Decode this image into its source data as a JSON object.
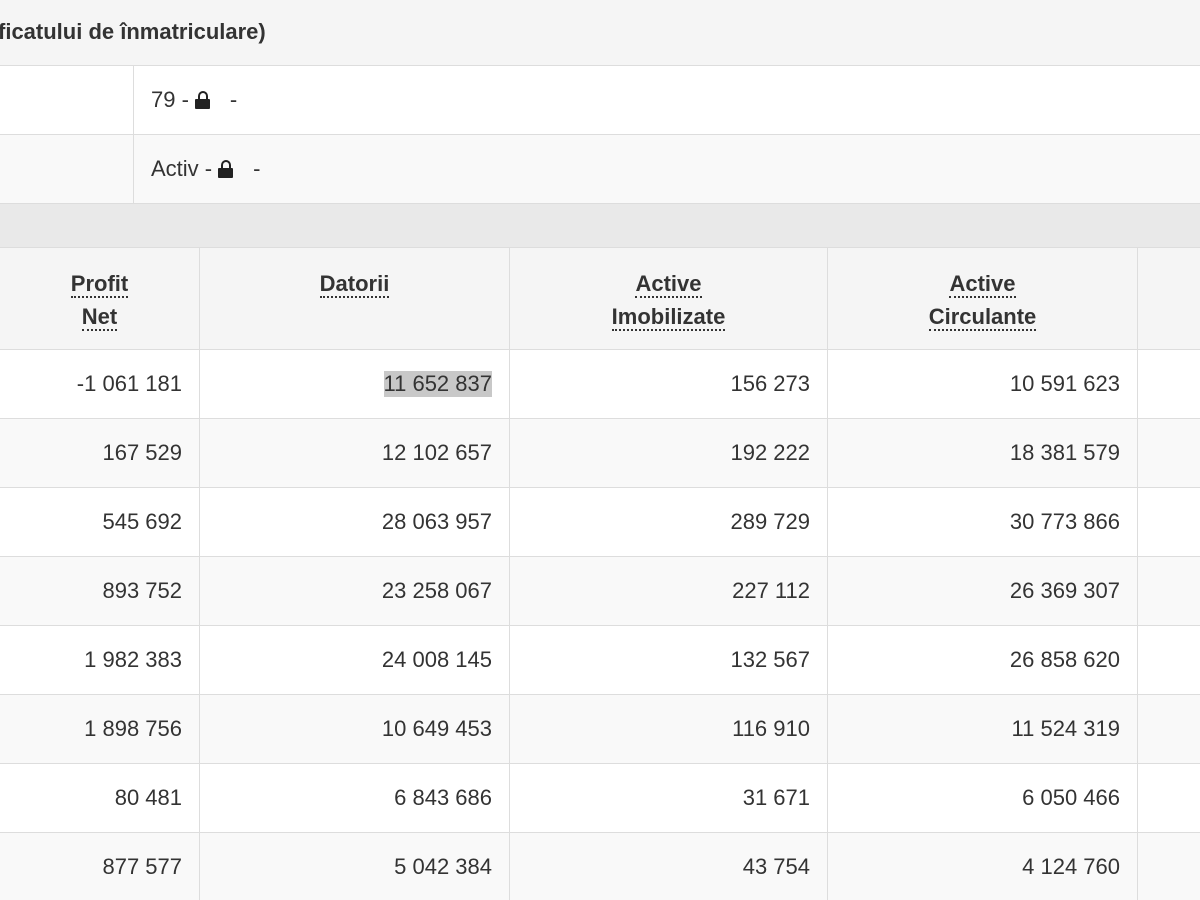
{
  "section": {
    "title": "ficatului de înmatriculare)"
  },
  "info_rows": [
    {
      "value": "79 -",
      "trailing": "-",
      "icon": "lock-icon"
    },
    {
      "value": "Activ -",
      "trailing": "-",
      "icon": "lock-icon"
    }
  ],
  "table": {
    "headers": {
      "profit_net": [
        "Profit",
        "Net"
      ],
      "datorii": [
        "Datorii"
      ],
      "active_imobilizate": [
        "Active",
        "Imobilizate"
      ],
      "active_circulante": [
        "Active",
        "Circulante"
      ]
    },
    "rows": [
      {
        "profit_net": "-1 061 181",
        "datorii": "11 652 837",
        "active_imobilizate": "156 273",
        "active_circulante": "10 591 623"
      },
      {
        "profit_net": "167 529",
        "datorii": "12 102 657",
        "active_imobilizate": "192 222",
        "active_circulante": "18 381 579"
      },
      {
        "profit_net": "545 692",
        "datorii": "28 063 957",
        "active_imobilizate": "289 729",
        "active_circulante": "30 773 866"
      },
      {
        "profit_net": "893 752",
        "datorii": "23 258 067",
        "active_imobilizate": "227 112",
        "active_circulante": "26 369 307"
      },
      {
        "profit_net": "1 982 383",
        "datorii": "24 008 145",
        "active_imobilizate": "132 567",
        "active_circulante": "26 858 620"
      },
      {
        "profit_net": "1 898 756",
        "datorii": "10 649 453",
        "active_imobilizate": "116 910",
        "active_circulante": "11 524 319"
      },
      {
        "profit_net": "80 481",
        "datorii": "6 843 686",
        "active_imobilizate": "31 671",
        "active_circulante": "6 050 466"
      },
      {
        "profit_net": "877 577",
        "datorii": "5 042 384",
        "active_imobilizate": "43 754",
        "active_circulante": "4 124 760"
      }
    ],
    "selected_cell": {
      "row": 0,
      "column": "datorii"
    }
  },
  "colors": {
    "header_bg": "#f5f5f5",
    "row_alt_bg": "#f9f9f9",
    "band_bg": "#e9e9e9",
    "border": "#dddddd",
    "text": "#333333",
    "selection_bg": "#c8c8c8"
  }
}
